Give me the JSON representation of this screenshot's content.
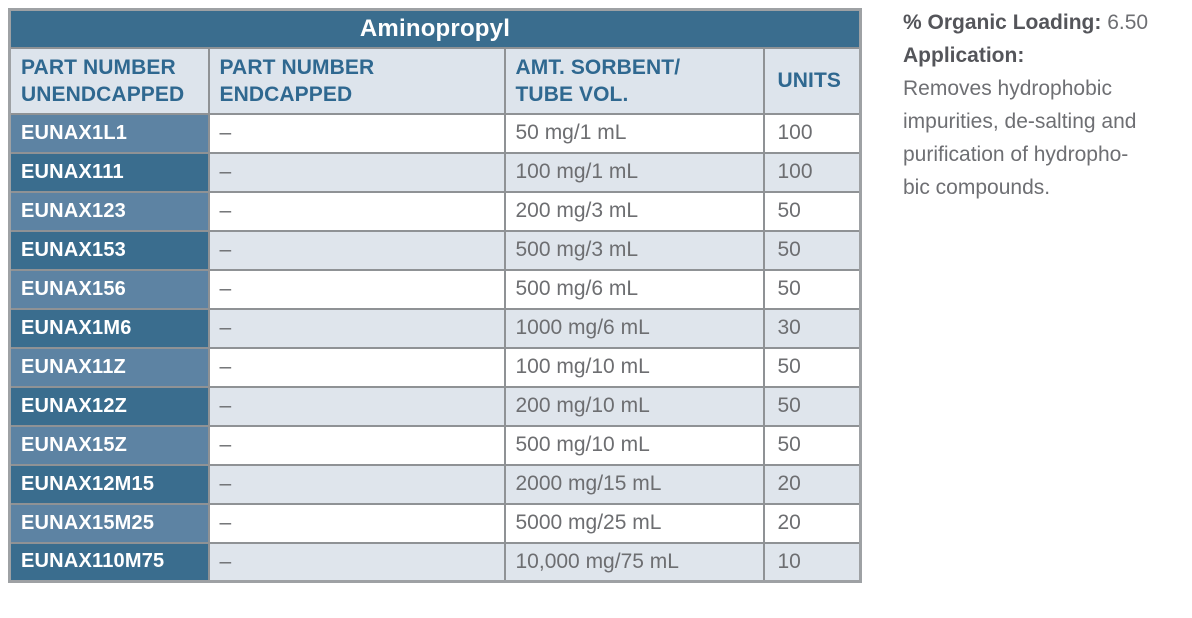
{
  "table": {
    "title": "Aminopropyl",
    "columns": [
      "PART NUMBER\nUNENDCAPPED",
      "PART NUMBER\nENDCAPPED",
      "AMT. SORBENT/\nTUBE VOL.",
      "UNITS"
    ],
    "rows": [
      {
        "part_unendcapped": "EUNAX1L1",
        "part_endcapped": "–",
        "amt_sorbent_tube_vol": "50 mg/1 mL",
        "units": "100"
      },
      {
        "part_unendcapped": "EUNAX111",
        "part_endcapped": "–",
        "amt_sorbent_tube_vol": "100 mg/1 mL",
        "units": "100"
      },
      {
        "part_unendcapped": "EUNAX123",
        "part_endcapped": "–",
        "amt_sorbent_tube_vol": "200 mg/3 mL",
        "units": "50"
      },
      {
        "part_unendcapped": "EUNAX153",
        "part_endcapped": "–",
        "amt_sorbent_tube_vol": "500 mg/3 mL",
        "units": "50"
      },
      {
        "part_unendcapped": "EUNAX156",
        "part_endcapped": "–",
        "amt_sorbent_tube_vol": "500 mg/6 mL",
        "units": "50"
      },
      {
        "part_unendcapped": "EUNAX1M6",
        "part_endcapped": "–",
        "amt_sorbent_tube_vol": "1000 mg/6 mL",
        "units": "30"
      },
      {
        "part_unendcapped": "EUNAX11Z",
        "part_endcapped": "–",
        "amt_sorbent_tube_vol": "100 mg/10 mL",
        "units": "50"
      },
      {
        "part_unendcapped": "EUNAX12Z",
        "part_endcapped": "–",
        "amt_sorbent_tube_vol": "200 mg/10 mL",
        "units": "50"
      },
      {
        "part_unendcapped": "EUNAX15Z",
        "part_endcapped": "–",
        "amt_sorbent_tube_vol": "500 mg/10 mL",
        "units": "50"
      },
      {
        "part_unendcapped": "EUNAX12M15",
        "part_endcapped": "–",
        "amt_sorbent_tube_vol": "2000 mg/15 mL",
        "units": "20"
      },
      {
        "part_unendcapped": "EUNAX15M25",
        "part_endcapped": "–",
        "amt_sorbent_tube_vol": "5000 mg/25 mL",
        "units": "20"
      },
      {
        "part_unendcapped": "EUNAX110M75",
        "part_endcapped": "–",
        "amt_sorbent_tube_vol": "10,000 mg/75 mL",
        "units": "10"
      }
    ]
  },
  "sidebar": {
    "organic_loading_label": "% Organic Loading:",
    "organic_loading_value": "6.50",
    "application_label": "Application:",
    "application_lines": [
      "Removes hydrophobic",
      "impurities, de-salting and",
      "purification of hydropho-",
      "bic compounds."
    ]
  },
  "colors": {
    "title_bar": "#3a6d8e",
    "part_light": "#5d83a3",
    "part_dark": "#3a6d8e",
    "header_bg": "#dde4ec",
    "zebra_bg": "#dfe5ec",
    "header_text": "#2f6890",
    "data_text": "#6d6e71",
    "border_gray": "#8f9295",
    "outer_border": "#9ea1a4",
    "sidebar_bold": "#54555a",
    "sidebar_text": "#6e6f73"
  }
}
